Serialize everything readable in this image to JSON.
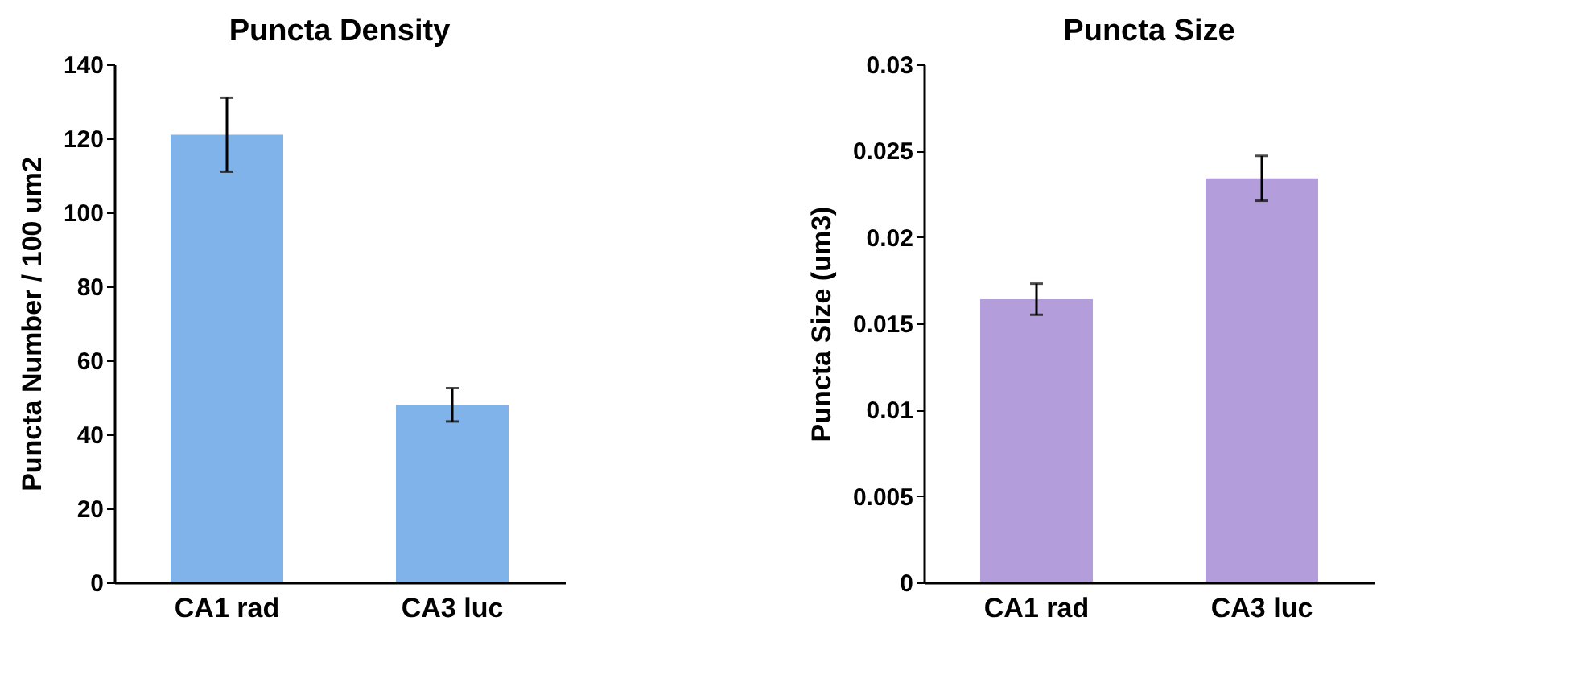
{
  "chart_data": [
    {
      "type": "bar",
      "title": "Puncta Density",
      "ylabel": "Puncta Number / 100 um2",
      "categories": [
        "CA1 rad",
        "CA3 luc"
      ],
      "values": [
        121,
        48
      ],
      "errors": [
        10,
        4.5
      ],
      "color": "#7fb3ea",
      "ylim": [
        0,
        140
      ],
      "yticks": [
        0,
        20,
        40,
        60,
        80,
        100,
        120,
        140
      ],
      "grid": false
    },
    {
      "type": "bar",
      "title": "Puncta Size",
      "ylabel": "Puncta Size (um3)",
      "categories": [
        "CA1 rad",
        "CA3 luc"
      ],
      "values": [
        0.0164,
        0.0234
      ],
      "errors": [
        0.0009,
        0.0013
      ],
      "color": "#b49ddb",
      "ylim": [
        0,
        0.03
      ],
      "yticks": [
        0,
        0.005,
        0.01,
        0.015,
        0.02,
        0.025,
        0.03
      ],
      "grid": false
    }
  ]
}
